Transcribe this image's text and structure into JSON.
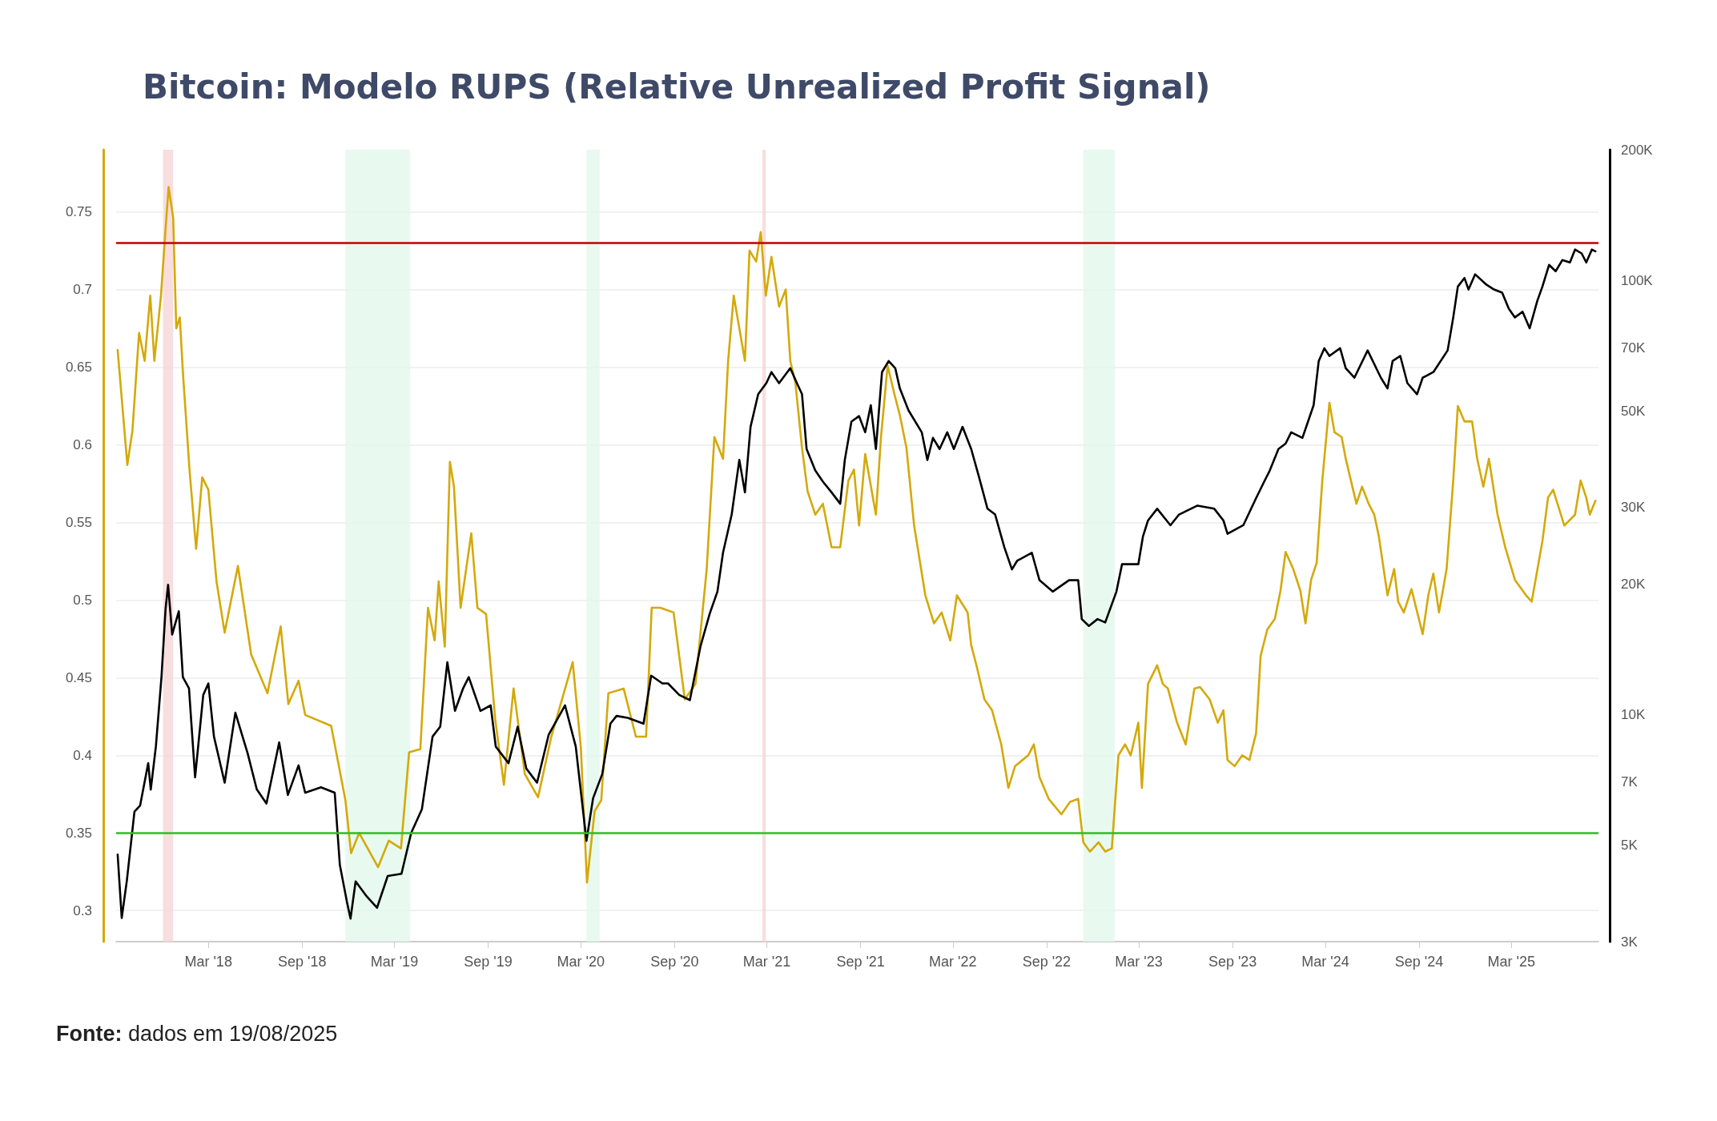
{
  "chart_data": {
    "type": "line",
    "title": "Bitcoin: Modelo RUPS (Relative Unrealized Profit Signal)",
    "annotations": [
      "Fonte: dados em 19/08/2025"
    ],
    "xlim": [
      "2017-09-01",
      "2025-08-19"
    ],
    "xticks": [
      {
        "value": "2018-03-01",
        "label": "Mar '18"
      },
      {
        "value": "2018-09-01",
        "label": "Sep '18"
      },
      {
        "value": "2019-03-01",
        "label": "Mar '19"
      },
      {
        "value": "2019-09-01",
        "label": "Sep '19"
      },
      {
        "value": "2020-03-01",
        "label": "Mar '20"
      },
      {
        "value": "2020-09-01",
        "label": "Sep '20"
      },
      {
        "value": "2021-03-01",
        "label": "Mar '21"
      },
      {
        "value": "2021-09-01",
        "label": "Sep '21"
      },
      {
        "value": "2022-03-01",
        "label": "Mar '22"
      },
      {
        "value": "2022-09-01",
        "label": "Sep '22"
      },
      {
        "value": "2023-03-01",
        "label": "Mar '23"
      },
      {
        "value": "2023-09-01",
        "label": "Sep '23"
      },
      {
        "value": "2024-03-01",
        "label": "Mar '24"
      },
      {
        "value": "2024-09-01",
        "label": "Sep '24"
      },
      {
        "value": "2025-03-01",
        "label": "Mar '25"
      }
    ],
    "ylim": [
      0.28,
      0.79
    ],
    "yticks": [
      0.3,
      0.35,
      0.4,
      0.45,
      0.5,
      0.55,
      0.6,
      0.65,
      0.7,
      0.75
    ],
    "y2lim": [
      3000,
      200000
    ],
    "y2ticks": [
      {
        "value": 3000,
        "label": "3K"
      },
      {
        "value": 5000,
        "label": "5K"
      },
      {
        "value": 7000,
        "label": "7K"
      },
      {
        "value": 10000,
        "label": "10K"
      },
      {
        "value": 20000,
        "label": "20K"
      },
      {
        "value": 30000,
        "label": "30K"
      },
      {
        "value": 50000,
        "label": "50K"
      },
      {
        "value": 70000,
        "label": "70K"
      },
      {
        "value": 100000,
        "label": "100K"
      },
      {
        "value": 200000,
        "label": "200K"
      }
    ],
    "log": "y2",
    "grid": "y",
    "marker": "none",
    "line_style": "solid",
    "ref_lines": [
      {
        "axis": "y",
        "value": 0.73,
        "color": "#c00000"
      },
      {
        "axis": "y",
        "value": 0.35,
        "color": "#2fbf1f"
      }
    ],
    "bands": [
      {
        "axis": "x",
        "from": "2017-12-02",
        "to": "2017-12-22",
        "color": "#f6d6d6"
      },
      {
        "axis": "x",
        "from": "2021-02-20",
        "to": "2021-02-27",
        "color": "#f6d6d6"
      },
      {
        "axis": "x",
        "from": "2018-11-25",
        "to": "2019-04-01",
        "color": "#e2f7ec"
      },
      {
        "axis": "x",
        "from": "2020-03-12",
        "to": "2020-04-07",
        "color": "#e2f7ec"
      },
      {
        "axis": "x",
        "from": "2022-11-12",
        "to": "2023-01-13",
        "color": "#e2f7ec"
      }
    ],
    "series": [
      {
        "color": "#d4a90a",
        "axis": "y",
        "x": [
          "2017-09-04",
          "2017-09-23",
          "2017-10-03",
          "2017-10-16",
          "2017-10-27",
          "2017-11-07",
          "2017-11-15",
          "2017-11-28",
          "2017-12-07",
          "2017-12-13",
          "2017-12-22",
          "2017-12-28",
          "2018-01-04",
          "2018-01-10",
          "2018-01-23",
          "2018-02-05",
          "2018-02-17",
          "2018-03-01",
          "2018-03-17",
          "2018-04-02",
          "2018-04-28",
          "2018-05-24",
          "2018-06-25",
          "2018-07-21",
          "2018-08-05",
          "2018-08-25",
          "2018-09-07",
          "2018-10-28",
          "2018-11-25",
          "2018-12-06",
          "2018-12-22",
          "2019-01-28",
          "2019-02-18",
          "2019-03-14",
          "2019-03-30",
          "2019-04-21",
          "2019-05-06",
          "2019-05-19",
          "2019-05-27",
          "2019-06-08",
          "2019-06-18",
          "2019-06-26",
          "2019-07-09",
          "2019-07-30",
          "2019-08-11",
          "2019-08-28",
          "2019-09-15",
          "2019-10-02",
          "2019-10-21",
          "2019-11-12",
          "2019-12-08",
          "2020-01-03",
          "2020-02-14",
          "2020-03-01",
          "2020-03-13",
          "2020-03-28",
          "2020-04-10",
          "2020-04-24",
          "2020-05-24",
          "2020-06-17",
          "2020-07-07",
          "2020-07-18",
          "2020-08-04",
          "2020-08-30",
          "2020-09-21",
          "2020-10-12",
          "2020-11-03",
          "2020-11-18",
          "2020-12-05",
          "2020-12-15",
          "2020-12-26",
          "2021-01-17",
          "2021-01-26",
          "2021-02-08",
          "2021-02-17",
          "2021-02-27",
          "2021-03-10",
          "2021-03-25",
          "2021-04-07",
          "2021-04-16",
          "2021-04-26",
          "2021-05-09",
          "2021-05-20",
          "2021-06-04",
          "2021-06-19",
          "2021-07-06",
          "2021-07-23",
          "2021-08-08",
          "2021-08-19",
          "2021-08-29",
          "2021-09-10",
          "2021-10-01",
          "2021-10-11",
          "2021-10-24",
          "2021-11-06",
          "2021-11-17",
          "2021-11-30",
          "2021-12-15",
          "2022-01-06",
          "2022-01-23",
          "2022-02-07",
          "2022-02-24",
          "2022-03-09",
          "2022-03-30",
          "2022-04-06",
          "2022-04-17",
          "2022-05-02",
          "2022-05-17",
          "2022-06-04",
          "2022-06-18",
          "2022-07-01",
          "2022-07-27",
          "2022-08-07",
          "2022-08-18",
          "2022-09-05",
          "2022-09-30",
          "2022-10-17",
          "2022-11-02",
          "2022-11-12",
          "2022-11-25",
          "2022-12-12",
          "2022-12-25",
          "2023-01-07",
          "2023-01-20",
          "2023-02-02",
          "2023-02-13",
          "2023-02-28",
          "2023-03-07",
          "2023-03-19",
          "2023-04-06",
          "2023-04-17",
          "2023-04-27",
          "2023-05-15",
          "2023-06-01",
          "2023-06-18",
          "2023-06-29",
          "2023-07-18",
          "2023-08-03",
          "2023-08-14",
          "2023-08-22",
          "2023-09-05",
          "2023-09-20",
          "2023-10-04",
          "2023-10-17",
          "2023-10-26",
          "2023-11-08",
          "2023-11-23",
          "2023-12-04",
          "2023-12-14",
          "2023-12-29",
          "2024-01-12",
          "2024-01-22",
          "2024-02-02",
          "2024-02-13",
          "2024-02-24",
          "2024-03-09",
          "2024-03-19",
          "2024-04-02",
          "2024-04-10",
          "2024-05-01",
          "2024-05-12",
          "2024-05-25",
          "2024-06-05",
          "2024-06-14",
          "2024-07-01",
          "2024-07-14",
          "2024-07-22",
          "2024-08-02",
          "2024-08-17",
          "2024-09-08",
          "2024-09-19",
          "2024-09-29",
          "2024-10-10",
          "2024-10-25",
          "2024-11-07",
          "2024-11-16",
          "2024-11-29",
          "2024-12-14",
          "2024-12-24",
          "2025-01-05",
          "2025-01-16",
          "2025-02-02",
          "2025-02-17",
          "2025-03-08",
          "2025-03-30",
          "2025-04-10",
          "2025-05-01",
          "2025-05-12",
          "2025-05-22",
          "2025-06-13",
          "2025-07-04",
          "2025-07-15",
          "2025-07-26",
          "2025-08-02",
          "2025-08-13"
        ],
        "values": [
          0.661,
          0.587,
          0.609,
          0.672,
          0.654,
          0.696,
          0.654,
          0.696,
          0.739,
          0.766,
          0.746,
          0.675,
          0.682,
          0.647,
          0.584,
          0.533,
          0.579,
          0.571,
          0.512,
          0.479,
          0.522,
          0.465,
          0.44,
          0.483,
          0.433,
          0.448,
          0.426,
          0.419,
          0.371,
          0.337,
          0.35,
          0.328,
          0.345,
          0.34,
          0.402,
          0.404,
          0.495,
          0.474,
          0.512,
          0.47,
          0.589,
          0.573,
          0.495,
          0.543,
          0.495,
          0.491,
          0.423,
          0.381,
          0.443,
          0.388,
          0.373,
          0.412,
          0.46,
          0.405,
          0.318,
          0.364,
          0.371,
          0.44,
          0.443,
          0.412,
          0.412,
          0.495,
          0.495,
          0.492,
          0.436,
          0.446,
          0.52,
          0.605,
          0.591,
          0.654,
          0.696,
          0.654,
          0.725,
          0.718,
          0.737,
          0.696,
          0.721,
          0.689,
          0.7,
          0.654,
          0.64,
          0.598,
          0.57,
          0.555,
          0.562,
          0.534,
          0.534,
          0.577,
          0.584,
          0.548,
          0.594,
          0.555,
          0.605,
          0.651,
          0.633,
          0.619,
          0.598,
          0.548,
          0.503,
          0.485,
          0.492,
          0.474,
          0.503,
          0.492,
          0.471,
          0.457,
          0.436,
          0.429,
          0.407,
          0.379,
          0.393,
          0.4,
          0.407,
          0.386,
          0.372,
          0.362,
          0.37,
          0.372,
          0.344,
          0.338,
          0.344,
          0.338,
          0.34,
          0.4,
          0.407,
          0.4,
          0.421,
          0.379,
          0.446,
          0.458,
          0.446,
          0.443,
          0.421,
          0.407,
          0.443,
          0.444,
          0.436,
          0.421,
          0.429,
          0.397,
          0.393,
          0.4,
          0.397,
          0.414,
          0.464,
          0.481,
          0.488,
          0.506,
          0.531,
          0.52,
          0.506,
          0.485,
          0.513,
          0.524,
          0.577,
          0.627,
          0.608,
          0.605,
          0.591,
          0.562,
          0.573,
          0.562,
          0.555,
          0.541,
          0.503,
          0.52,
          0.499,
          0.492,
          0.507,
          0.478,
          0.503,
          0.517,
          0.492,
          0.52,
          0.577,
          0.625,
          0.615,
          0.615,
          0.591,
          0.573,
          0.591,
          0.555,
          0.534,
          0.513,
          0.503,
          0.499,
          0.538,
          0.566,
          0.571,
          0.548,
          0.555,
          0.577,
          0.566,
          0.555,
          0.564
        ]
      },
      {
        "color": "#000000",
        "axis": "y2",
        "x": [
          "2017-09-04",
          "2017-09-12",
          "2017-09-22",
          "2017-10-07",
          "2017-10-18",
          "2017-11-03",
          "2017-11-08",
          "2017-11-18",
          "2017-11-29",
          "2017-12-07",
          "2017-12-12",
          "2017-12-20",
          "2018-01-02",
          "2018-01-10",
          "2018-01-22",
          "2018-02-03",
          "2018-02-19",
          "2018-03-01",
          "2018-03-12",
          "2018-04-02",
          "2018-04-23",
          "2018-05-17",
          "2018-06-04",
          "2018-06-23",
          "2018-07-18",
          "2018-08-04",
          "2018-08-25",
          "2018-09-07",
          "2018-10-08",
          "2018-11-04",
          "2018-11-14",
          "2018-11-28",
          "2018-12-05",
          "2018-12-15",
          "2019-01-06",
          "2019-01-26",
          "2019-02-16",
          "2019-03-15",
          "2019-04-03",
          "2019-04-24",
          "2019-05-15",
          "2019-05-30",
          "2019-06-13",
          "2019-06-28",
          "2019-07-14",
          "2019-07-25",
          "2019-08-17",
          "2019-09-06",
          "2019-09-16",
          "2019-10-11",
          "2019-10-29",
          "2019-11-15",
          "2019-12-06",
          "2019-12-29",
          "2020-01-30",
          "2020-02-20",
          "2020-03-12",
          "2020-03-25",
          "2020-04-12",
          "2020-04-28",
          "2020-05-10",
          "2020-06-01",
          "2020-07-02",
          "2020-07-17",
          "2020-08-08",
          "2020-08-19",
          "2020-09-10",
          "2020-10-01",
          "2020-10-22",
          "2020-11-09",
          "2020-11-24",
          "2020-12-05",
          "2020-12-22",
          "2021-01-06",
          "2021-01-17",
          "2021-01-28",
          "2021-02-12",
          "2021-02-28",
          "2021-03-10",
          "2021-03-25",
          "2021-04-16",
          "2021-04-29",
          "2021-05-09",
          "2021-05-18",
          "2021-06-04",
          "2021-06-19",
          "2021-07-06",
          "2021-07-23",
          "2021-08-01",
          "2021-08-14",
          "2021-08-29",
          "2021-09-10",
          "2021-09-21",
          "2021-10-01",
          "2021-10-13",
          "2021-10-26",
          "2021-11-08",
          "2021-11-17",
          "2021-12-04",
          "2021-12-30",
          "2022-01-10",
          "2022-01-21",
          "2022-02-03",
          "2022-02-18",
          "2022-03-03",
          "2022-03-20",
          "2022-04-06",
          "2022-04-21",
          "2022-05-08",
          "2022-05-23",
          "2022-06-10",
          "2022-06-25",
          "2022-07-05",
          "2022-08-03",
          "2022-08-18",
          "2022-09-13",
          "2022-10-15",
          "2022-11-02",
          "2022-11-09",
          "2022-11-23",
          "2022-12-10",
          "2022-12-25",
          "2023-01-16",
          "2023-01-27",
          "2023-02-28",
          "2023-03-09",
          "2023-03-19",
          "2023-04-06",
          "2023-05-02",
          "2023-05-19",
          "2023-06-24",
          "2023-07-27",
          "2023-08-14",
          "2023-08-22",
          "2023-09-22",
          "2023-10-17",
          "2023-11-02",
          "2023-11-13",
          "2023-11-30",
          "2023-12-14",
          "2023-12-25",
          "2024-01-16",
          "2024-01-27",
          "2024-02-07",
          "2024-02-17",
          "2024-02-28",
          "2024-03-09",
          "2024-03-30",
          "2024-04-10",
          "2024-04-27",
          "2024-05-23",
          "2024-06-18",
          "2024-07-01",
          "2024-07-11",
          "2024-07-26",
          "2024-08-09",
          "2024-08-28",
          "2024-09-08",
          "2024-09-29",
          "2024-10-27",
          "2024-11-07",
          "2024-11-16",
          "2024-11-29",
          "2024-12-07",
          "2024-12-20",
          "2025-01-11",
          "2025-01-26",
          "2025-02-11",
          "2025-02-24",
          "2025-03-08",
          "2025-03-23",
          "2025-04-06",
          "2025-04-21",
          "2025-05-01",
          "2025-05-14",
          "2025-05-27",
          "2025-06-09",
          "2025-06-24",
          "2025-07-04",
          "2025-07-17",
          "2025-07-26",
          "2025-08-06",
          "2025-08-13"
        ],
        "values": [
          4760,
          3400,
          4140,
          5980,
          6170,
          7730,
          6720,
          8440,
          12200,
          17500,
          19900,
          15300,
          17300,
          12200,
          11500,
          7170,
          11100,
          11800,
          8900,
          6970,
          10100,
          8150,
          6730,
          6240,
          8630,
          6530,
          7640,
          6610,
          6800,
          6610,
          4510,
          3700,
          3390,
          4130,
          3810,
          3590,
          4250,
          4300,
          5340,
          6050,
          8900,
          9380,
          13200,
          10200,
          11500,
          12200,
          10200,
          10500,
          8440,
          7730,
          9380,
          7510,
          6970,
          9000,
          10500,
          8440,
          5120,
          6420,
          7300,
          9530,
          9930,
          9830,
          9530,
          12300,
          11800,
          11800,
          11100,
          10800,
          14400,
          17100,
          19200,
          23600,
          28900,
          38600,
          32500,
          46000,
          54700,
          58000,
          61500,
          58000,
          62800,
          58000,
          54700,
          40900,
          36500,
          34400,
          32500,
          30600,
          38600,
          47300,
          48700,
          44700,
          51600,
          40900,
          61500,
          65200,
          62800,
          56400,
          50200,
          44700,
          38600,
          43400,
          40900,
          44700,
          40900,
          46000,
          40900,
          35400,
          29800,
          28900,
          24300,
          21600,
          22600,
          23600,
          20400,
          19200,
          20400,
          20400,
          16600,
          16000,
          16600,
          16300,
          19200,
          22200,
          22200,
          25700,
          28000,
          29800,
          27300,
          28900,
          30300,
          29800,
          28000,
          26100,
          27300,
          31500,
          34400,
          36500,
          40900,
          42100,
          44700,
          43400,
          47300,
          51600,
          65200,
          69800,
          67000,
          69800,
          62800,
          59700,
          69000,
          59700,
          56400,
          65200,
          67000,
          58000,
          54700,
          59700,
          61500,
          69000,
          82200,
          96800,
          101300,
          95300,
          103300,
          97800,
          95300,
          93700,
          86100,
          82200,
          84700,
          77600,
          89800,
          96800,
          108600,
          105000,
          111400,
          110000,
          117800,
          115400,
          110000,
          117800,
          116700
        ]
      }
    ]
  }
}
